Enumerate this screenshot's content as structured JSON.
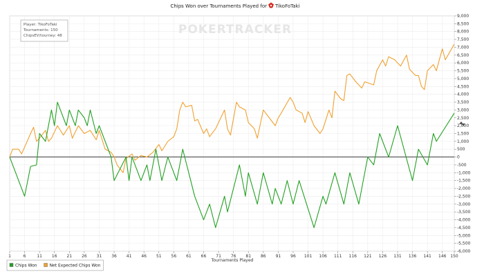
{
  "chart_data": {
    "type": "line",
    "title": "Chips Won over Tournaments Played for",
    "player_name": "TikoFoTaki",
    "xlabel": "Tournaments Played",
    "ylabel": "",
    "xlim": [
      1,
      150
    ],
    "ylim": [
      -6000,
      9000
    ],
    "x_ticks": [
      1,
      6,
      11,
      16,
      21,
      26,
      31,
      36,
      41,
      46,
      51,
      56,
      61,
      66,
      71,
      76,
      81,
      86,
      91,
      96,
      101,
      106,
      111,
      116,
      121,
      126,
      131,
      136,
      141,
      146,
      150
    ],
    "y_ticks": [
      -6000,
      -5500,
      -5000,
      -4500,
      -4000,
      -3500,
      -3000,
      -2500,
      -2000,
      -1500,
      -1000,
      -500,
      0,
      500,
      1000,
      1500,
      2000,
      2500,
      3000,
      3500,
      4000,
      4500,
      5000,
      5500,
      6000,
      6500,
      7000,
      7500,
      8000,
      8500,
      9000
    ],
    "y_tick_labels": [
      "-6,000",
      "-5,500",
      "-5,000",
      "-4,500",
      "-4,000",
      "-3,500",
      "-3,000",
      "-2,500",
      "-2,000",
      "-1,500",
      "-1,000",
      "-500",
      "0",
      "500",
      "1,000",
      "1,500",
      "2,000",
      "2,500",
      "3,000",
      "3,500",
      "4,000",
      "4,500",
      "5,000",
      "5,500",
      "6,000",
      "6,500",
      "7,000",
      "7,500",
      "8,000",
      "8,500",
      "9,000"
    ],
    "grid": true,
    "legend_position": "bottom-left",
    "info_box": {
      "player": "Player: TikoFoTaki",
      "tournaments": "Tournaments: 150",
      "chips_per_tourney": "ChipsEV/tourney: 48"
    },
    "watermark": "POKERTRACKER",
    "series": [
      {
        "name": "Chips Won",
        "color": "#22a022",
        "points": [
          [
            1,
            0
          ],
          [
            6,
            -2500
          ],
          [
            8,
            -600
          ],
          [
            10,
            -500
          ],
          [
            11,
            1500
          ],
          [
            13,
            1000
          ],
          [
            15,
            3000
          ],
          [
            16,
            2000
          ],
          [
            17,
            3500
          ],
          [
            20,
            2000
          ],
          [
            21,
            3000
          ],
          [
            23,
            2000
          ],
          [
            24,
            3000
          ],
          [
            26,
            2500
          ],
          [
            27,
            2000
          ],
          [
            28,
            3000
          ],
          [
            30,
            1500
          ],
          [
            31,
            2000
          ],
          [
            35,
            0
          ],
          [
            36,
            -1500
          ],
          [
            40,
            0
          ],
          [
            41,
            -1500
          ],
          [
            42,
            0
          ],
          [
            45,
            -1500
          ],
          [
            47,
            -500
          ],
          [
            48,
            -1500
          ],
          [
            50,
            500
          ],
          [
            52,
            -1500
          ],
          [
            54,
            0
          ],
          [
            57,
            -1500
          ],
          [
            59,
            500
          ],
          [
            63,
            -2500
          ],
          [
            66,
            -4000
          ],
          [
            68,
            -3000
          ],
          [
            70,
            -4500
          ],
          [
            73,
            -2500
          ],
          [
            74,
            -3500
          ],
          [
            78,
            -500
          ],
          [
            80,
            -2500
          ],
          [
            81,
            -1000
          ],
          [
            84,
            -3000
          ],
          [
            86,
            -1000
          ],
          [
            89,
            -3000
          ],
          [
            90,
            -2000
          ],
          [
            92,
            -3000
          ],
          [
            94,
            -1500
          ],
          [
            96,
            -3000
          ],
          [
            98,
            -1500
          ],
          [
            103,
            -4500
          ],
          [
            106,
            -2500
          ],
          [
            107,
            -3000
          ],
          [
            110,
            -1000
          ],
          [
            113,
            -3000
          ],
          [
            115,
            -1000
          ],
          [
            118,
            -3000
          ],
          [
            121,
            0
          ],
          [
            123,
            -500
          ],
          [
            125,
            1500
          ],
          [
            128,
            0
          ],
          [
            131,
            2000
          ],
          [
            136,
            -1500
          ],
          [
            138,
            500
          ],
          [
            141,
            -500
          ],
          [
            143,
            1500
          ],
          [
            144,
            1000
          ],
          [
            150,
            2800
          ]
        ]
      },
      {
        "name": "Net Expected Chips Won",
        "color": "#f0a030",
        "points": [
          [
            1,
            0
          ],
          [
            2,
            500
          ],
          [
            4,
            500
          ],
          [
            5,
            200
          ],
          [
            8,
            1500
          ],
          [
            9,
            1900
          ],
          [
            10,
            1000
          ],
          [
            11,
            1200
          ],
          [
            13,
            1700
          ],
          [
            14,
            1000
          ],
          [
            15,
            1200
          ],
          [
            17,
            2000
          ],
          [
            19,
            1400
          ],
          [
            21,
            2000
          ],
          [
            22,
            1200
          ],
          [
            24,
            2000
          ],
          [
            26,
            1500
          ],
          [
            28,
            1700
          ],
          [
            30,
            1100
          ],
          [
            31,
            1700
          ],
          [
            33,
            500
          ],
          [
            35,
            300
          ],
          [
            36,
            0
          ],
          [
            37,
            -500
          ],
          [
            39,
            -1000
          ],
          [
            40,
            -100
          ],
          [
            42,
            200
          ],
          [
            43,
            -200
          ],
          [
            45,
            100
          ],
          [
            47,
            0
          ],
          [
            49,
            300
          ],
          [
            51,
            800
          ],
          [
            52,
            400
          ],
          [
            54,
            1000
          ],
          [
            56,
            1300
          ],
          [
            57,
            1800
          ],
          [
            58,
            3000
          ],
          [
            59,
            3500
          ],
          [
            60,
            3200
          ],
          [
            62,
            3300
          ],
          [
            63,
            2300
          ],
          [
            64,
            2400
          ],
          [
            66,
            1500
          ],
          [
            67,
            1800
          ],
          [
            68,
            1300
          ],
          [
            70,
            1800
          ],
          [
            73,
            3000
          ],
          [
            74,
            1800
          ],
          [
            75,
            1400
          ],
          [
            77,
            3500
          ],
          [
            78,
            3200
          ],
          [
            80,
            3000
          ],
          [
            81,
            2200
          ],
          [
            83,
            1800
          ],
          [
            84,
            1200
          ],
          [
            86,
            3000
          ],
          [
            88,
            2500
          ],
          [
            90,
            2000
          ],
          [
            91,
            2500
          ],
          [
            92,
            2800
          ],
          [
            95,
            3800
          ],
          [
            96,
            3500
          ],
          [
            97,
            3000
          ],
          [
            99,
            2800
          ],
          [
            100,
            2200
          ],
          [
            101,
            2900
          ],
          [
            103,
            2000
          ],
          [
            105,
            1500
          ],
          [
            106,
            1800
          ],
          [
            108,
            3000
          ],
          [
            109,
            2500
          ],
          [
            110,
            4200
          ],
          [
            112,
            3700
          ],
          [
            113,
            3600
          ],
          [
            114,
            5200
          ],
          [
            115,
            5300
          ],
          [
            117,
            4800
          ],
          [
            119,
            4400
          ],
          [
            120,
            4800
          ],
          [
            123,
            4600
          ],
          [
            124,
            5500
          ],
          [
            126,
            6200
          ],
          [
            127,
            5800
          ],
          [
            128,
            6400
          ],
          [
            130,
            6200
          ],
          [
            132,
            5800
          ],
          [
            134,
            6500
          ],
          [
            135,
            5600
          ],
          [
            137,
            5200
          ],
          [
            138,
            5200
          ],
          [
            139,
            4500
          ],
          [
            140,
            4300
          ],
          [
            141,
            5500
          ],
          [
            142,
            5700
          ],
          [
            143,
            5900
          ],
          [
            144,
            5500
          ],
          [
            146,
            6900
          ],
          [
            147,
            6200
          ],
          [
            150,
            7200
          ]
        ]
      }
    ]
  }
}
